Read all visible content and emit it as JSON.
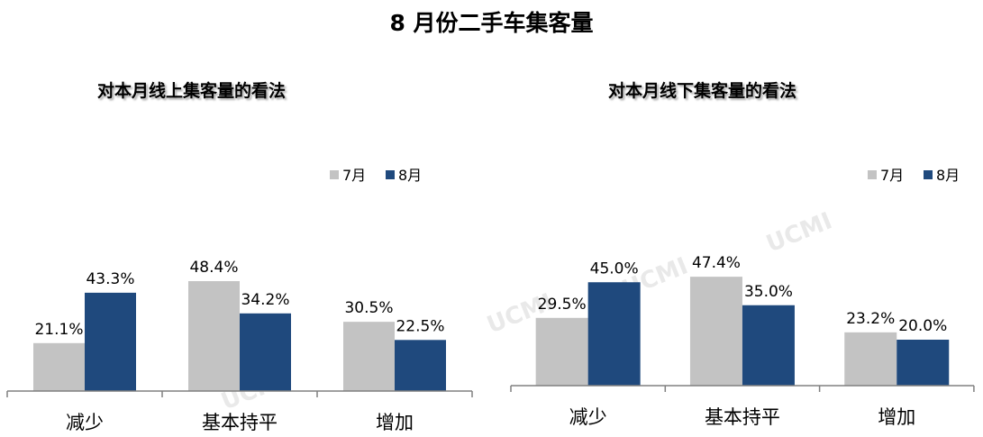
{
  "title": "8 月份二手车集客量",
  "colors": {
    "jul": "#c3c3c3",
    "aug": "#1f497d",
    "axis": "#808080",
    "text": "#000000"
  },
  "watermark_text": "UCMI",
  "chart_data": [
    {
      "type": "bar",
      "title": "对本月线上集客量的看法",
      "categories": [
        "减少",
        "基本持平",
        "增加"
      ],
      "series": [
        {
          "name": "7月",
          "values": [
            21.1,
            48.4,
            30.5
          ],
          "labels": [
            "21.1%",
            "48.4%",
            "30.5%"
          ]
        },
        {
          "name": "8月",
          "values": [
            43.3,
            34.2,
            22.5
          ],
          "labels": [
            "43.3%",
            "34.2%",
            "22.5%"
          ]
        }
      ],
      "legend": "top-right",
      "grid": false
    },
    {
      "type": "bar",
      "title": "对本月线下集客量的看法",
      "categories": [
        "减少",
        "基本持平",
        "增加"
      ],
      "series": [
        {
          "name": "7月",
          "values": [
            29.5,
            47.4,
            23.2
          ],
          "labels": [
            "29.5%",
            "47.4%",
            "23.2%"
          ]
        },
        {
          "name": "8月",
          "values": [
            45.0,
            35.0,
            20.0
          ],
          "labels": [
            "45.0%",
            "35.0%",
            "20.0%"
          ]
        }
      ],
      "legend": "top-right",
      "grid": false
    }
  ]
}
